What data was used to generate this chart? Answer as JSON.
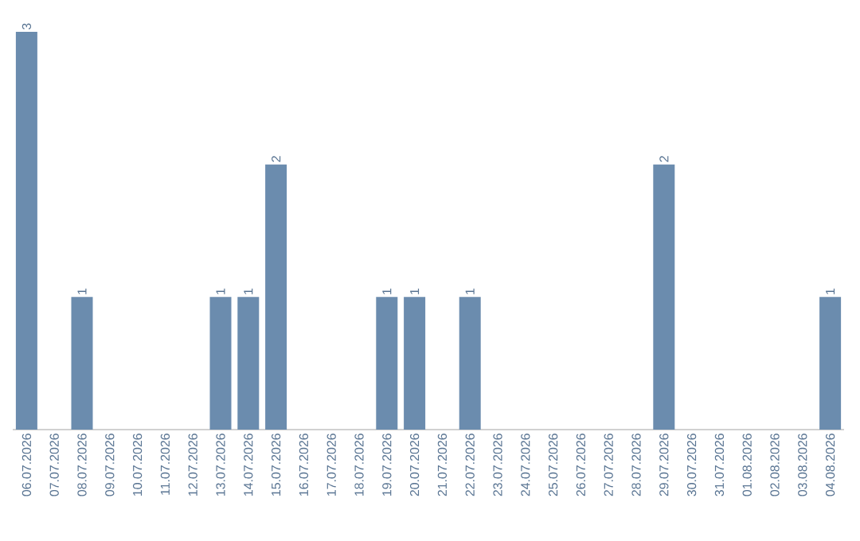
{
  "chart_data": {
    "type": "bar",
    "categories": [
      "06.07.2026",
      "07.07.2026",
      "08.07.2026",
      "09.07.2026",
      "10.07.2026",
      "11.07.2026",
      "12.07.2026",
      "13.07.2026",
      "14.07.2026",
      "15.07.2026",
      "16.07.2026",
      "17.07.2026",
      "18.07.2026",
      "19.07.2026",
      "20.07.2026",
      "21.07.2026",
      "22.07.2026",
      "23.07.2026",
      "24.07.2026",
      "25.07.2026",
      "26.07.2026",
      "27.07.2026",
      "28.07.2026",
      "29.07.2026",
      "30.07.2026",
      "31.07.2026",
      "01.08.2026",
      "02.08.2026",
      "03.08.2026",
      "04.08.2026"
    ],
    "values": [
      3,
      0,
      1,
      0,
      0,
      0,
      0,
      1,
      1,
      2,
      0,
      0,
      0,
      1,
      1,
      0,
      1,
      0,
      0,
      0,
      0,
      0,
      0,
      2,
      0,
      0,
      0,
      0,
      0,
      1
    ],
    "value_labels": [
      "3",
      null,
      "1",
      null,
      null,
      null,
      null,
      "1",
      "1",
      "2",
      null,
      null,
      null,
      "1",
      "1",
      null,
      "1",
      null,
      null,
      null,
      null,
      null,
      null,
      "2",
      null,
      null,
      null,
      null,
      null,
      "1"
    ],
    "color": "#6b8cae"
  }
}
